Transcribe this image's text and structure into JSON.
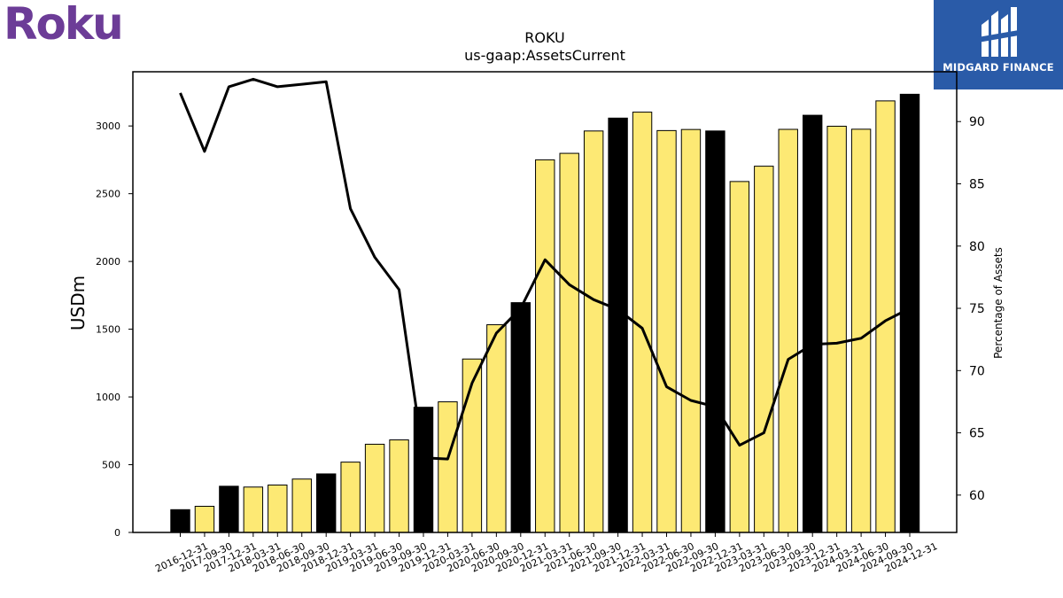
{
  "logos": {
    "left_text": "Roku",
    "right_text": "MIDGARD FINANCE",
    "left_color": "#6c3c97",
    "right_bg": "#2a5ba8"
  },
  "chart_data": {
    "type": "bar",
    "title": "ROKU",
    "subtitle": "us-gaap:AssetsCurrent",
    "ylabel": "USDm",
    "y2label": "Percentage of Assets",
    "categories": [
      "2016-12-31",
      "2017-09-30",
      "2017-12-31",
      "2018-03-31",
      "2018-06-30",
      "2018-09-30",
      "2018-12-31",
      "2019-03-31",
      "2019-06-30",
      "2019-09-30",
      "2019-12-31",
      "2020-03-31",
      "2020-06-30",
      "2020-09-30",
      "2020-12-31",
      "2021-03-31",
      "2021-06-30",
      "2021-09-30",
      "2021-12-31",
      "2022-03-31",
      "2022-06-30",
      "2022-09-30",
      "2022-12-31",
      "2023-03-31",
      "2023-06-30",
      "2023-09-30",
      "2023-12-31",
      "2024-03-31",
      "2024-06-30",
      "2024-09-30",
      "2024-12-31"
    ],
    "values": [
      168,
      193,
      341,
      335,
      350,
      394,
      432,
      519,
      651,
      683,
      924,
      964,
      1280,
      1533,
      1696,
      2750,
      2798,
      2963,
      3058,
      3102,
      2966,
      2974,
      2963,
      2590,
      2703,
      2975,
      3079,
      2998,
      2976,
      3185,
      3234
    ],
    "bar_colors": [
      "black",
      "yellow",
      "black",
      "yellow",
      "yellow",
      "yellow",
      "black",
      "yellow",
      "yellow",
      "yellow",
      "black",
      "yellow",
      "yellow",
      "yellow",
      "black",
      "yellow",
      "yellow",
      "yellow",
      "black",
      "yellow",
      "yellow",
      "yellow",
      "black",
      "yellow",
      "yellow",
      "yellow",
      "black",
      "yellow",
      "yellow",
      "yellow",
      "black"
    ],
    "colors": {
      "annual": "#000000",
      "quarterly": "#fde974",
      "line": "#000000"
    },
    "line_series": {
      "name": "Percentage of Assets",
      "axis": "right",
      "values": [
        92.3,
        87.6,
        92.8,
        93.4,
        92.8,
        93.0,
        93.2,
        83.0,
        79.1,
        76.5,
        63.0,
        62.9,
        69.0,
        73.0,
        75.0,
        78.9,
        76.9,
        75.7,
        74.9,
        73.4,
        68.7,
        67.6,
        67.1,
        64.0,
        65.0,
        70.9,
        72.1,
        72.2,
        72.6,
        74.0,
        75.0
      ]
    },
    "ylim": [
      0,
      3400
    ],
    "y2lim": [
      57,
      94
    ],
    "yticks": [
      0,
      500,
      1000,
      1500,
      2000,
      2500,
      3000
    ],
    "y2ticks": [
      60,
      65,
      70,
      75,
      80,
      85,
      90
    ],
    "grid": false,
    "legend": "none"
  }
}
